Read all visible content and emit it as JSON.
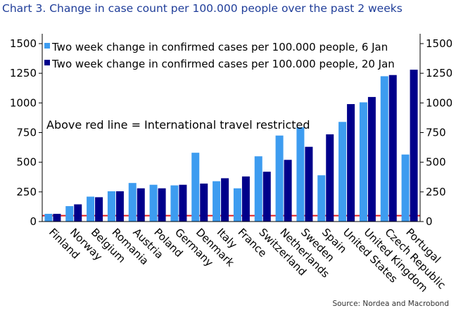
{
  "title": "Chart 3. Change in case count per 100.000 people over the past 2 weeks",
  "source": "Source: Nordea and Macrobond",
  "chart_data": {
    "type": "bar",
    "categories": [
      "Finland",
      "Norway",
      "Belgium",
      "Romania",
      "Austria",
      "Poland",
      "Germany",
      "Denmark",
      "Italy",
      "France",
      "Switzerland",
      "Netherlands",
      "Sweden",
      "Spain",
      "United States",
      "United Kingdom",
      "Czech Republic",
      "Portugal"
    ],
    "series": [
      {
        "name": "Two week change in confirmed cases per 100.000 people, 6 Jan",
        "color": "#3d9cf0",
        "values": [
          65,
          130,
          210,
          255,
          325,
          310,
          305,
          580,
          340,
          280,
          550,
          725,
          795,
          390,
          840,
          1005,
          1225,
          565
        ]
      },
      {
        "name": "Two week change in confirmed cases per 100.000 people, 20 Jan",
        "color": "#00008b",
        "values": [
          65,
          145,
          205,
          255,
          280,
          280,
          310,
          320,
          365,
          380,
          420,
          520,
          630,
          735,
          990,
          1050,
          1235,
          1280
        ]
      }
    ],
    "ylim": [
      0,
      1500
    ],
    "yticks": [
      0,
      250,
      500,
      750,
      1000,
      1250,
      1500
    ],
    "reference_line": {
      "value": 50,
      "color": "#e01e1e"
    },
    "annotation": "Above red line = International travel restricted",
    "legend_position": "top-left",
    "grid": false
  }
}
